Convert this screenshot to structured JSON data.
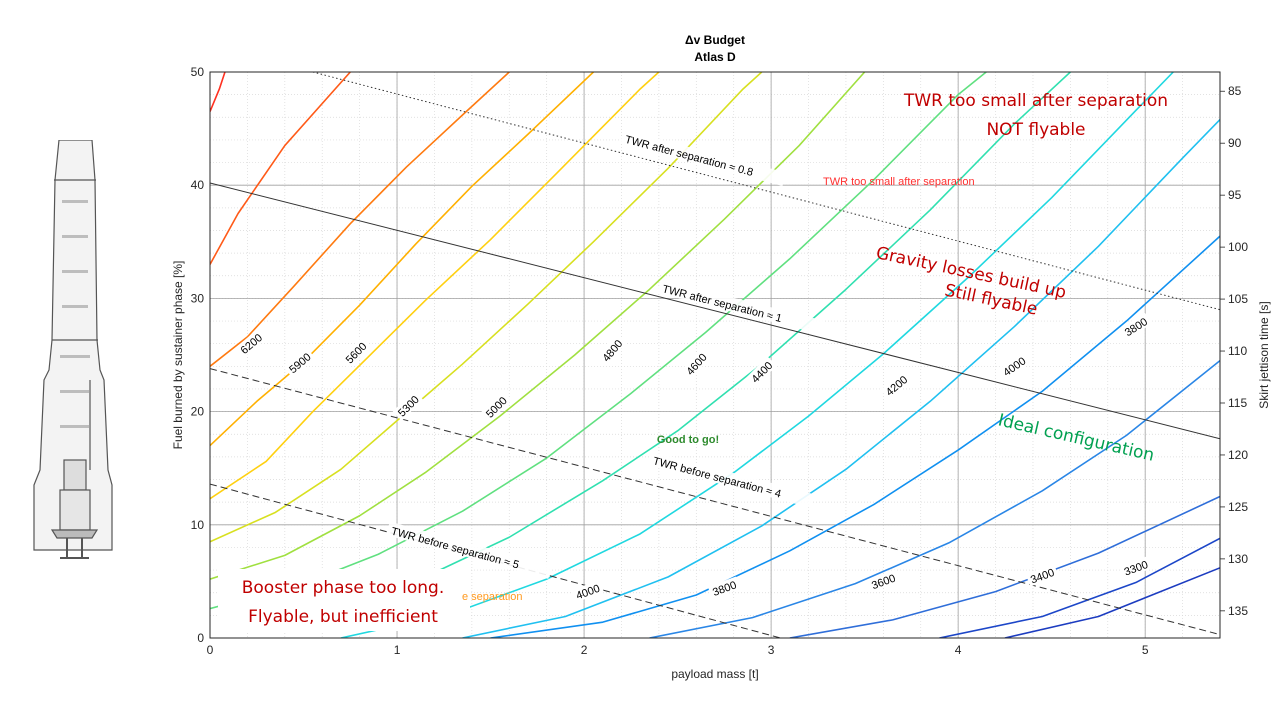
{
  "chart_data": {
    "type": "line",
    "title": "Δv Budget",
    "subtitle": "Atlas D",
    "xlabel": "payload mass [t]",
    "ylabel": "Fuel burned by sustainer phase [%]",
    "y2label": "Skirt jettison time [s]",
    "xlim": [
      0,
      5.4
    ],
    "ylim": [
      0,
      50
    ],
    "xticks": [
      "0",
      "1",
      "2",
      "3",
      "4",
      "5"
    ],
    "yticks": [
      "0",
      "10",
      "20",
      "30",
      "40",
      "50"
    ],
    "y2ticks": [
      "85",
      "90",
      "95",
      "100",
      "105",
      "110",
      "115",
      "120",
      "125",
      "130",
      "135"
    ],
    "grid": true,
    "dv_contours": [
      {
        "value": 6200,
        "label": "6200",
        "color": "#ff7a10",
        "points": [
          [
            0,
            24
          ],
          [
            0.2,
            26.6
          ],
          [
            0.45,
            31.1
          ],
          [
            0.75,
            36.6
          ],
          [
            1.05,
            41.6
          ],
          [
            1.35,
            46.2
          ],
          [
            1.6,
            50
          ]
        ]
      },
      {
        "value": 5900,
        "label": "5900",
        "color": "#ffb000",
        "points": [
          [
            0,
            17
          ],
          [
            0.25,
            20.9
          ],
          [
            0.5,
            24.4
          ],
          [
            0.8,
            29.4
          ],
          [
            1.1,
            34.8
          ],
          [
            1.4,
            39.9
          ],
          [
            1.7,
            44.5
          ],
          [
            2.05,
            50
          ]
        ]
      },
      {
        "value": 5600,
        "label": "5600",
        "color": "#ffd010",
        "points": [
          [
            0,
            12.3
          ],
          [
            0.3,
            15.6
          ],
          [
            0.55,
            20.0
          ],
          [
            0.85,
            24.9
          ],
          [
            1.15,
            29.8
          ],
          [
            1.5,
            35.2
          ],
          [
            1.85,
            41
          ],
          [
            2.3,
            48.5
          ],
          [
            2.4,
            50
          ]
        ]
      },
      {
        "value": 5300,
        "label": "5300",
        "color": "#d8e020",
        "points": [
          [
            0,
            8.5
          ],
          [
            0.35,
            11.1
          ],
          [
            0.7,
            14.9
          ],
          [
            1.0,
            19.2
          ],
          [
            1.35,
            24.2
          ],
          [
            1.7,
            29.5
          ],
          [
            2.05,
            35.0
          ],
          [
            2.45,
            41.5
          ],
          [
            2.85,
            48.5
          ],
          [
            2.95,
            50
          ]
        ]
      },
      {
        "value": 5000,
        "label": "5000",
        "color": "#a0e040",
        "points": [
          [
            0,
            5.2
          ],
          [
            0.4,
            7.3
          ],
          [
            0.8,
            10.8
          ],
          [
            1.15,
            14.6
          ],
          [
            1.55,
            19.6
          ],
          [
            1.95,
            25.0
          ],
          [
            2.35,
            30.8
          ],
          [
            2.75,
            37.0
          ],
          [
            3.15,
            43.5
          ],
          [
            3.5,
            50
          ]
        ]
      },
      {
        "value": 4800,
        "label": "4800",
        "color": "#60e080",
        "points": [
          [
            0,
            2.6
          ],
          [
            0.5,
            4.8
          ],
          [
            0.9,
            7.4
          ],
          [
            1.35,
            11.2
          ],
          [
            1.8,
            15.9
          ],
          [
            2.25,
            21.6
          ],
          [
            2.65,
            27.0
          ],
          [
            3.1,
            33.5
          ],
          [
            3.55,
            40.5
          ],
          [
            4.0,
            48
          ],
          [
            4.15,
            50
          ]
        ]
      },
      {
        "value": 4600,
        "label": "4600",
        "color": "#30e0b0",
        "points": [
          [
            0.2,
            0.7
          ],
          [
            0.6,
            2.4
          ],
          [
            1.1,
            5.0
          ],
          [
            1.6,
            8.9
          ],
          [
            2.1,
            13.9
          ],
          [
            2.5,
            18.3
          ],
          [
            2.95,
            24.2
          ],
          [
            3.4,
            30.8
          ],
          [
            3.85,
            37.8
          ],
          [
            4.3,
            45.4
          ],
          [
            4.6,
            50
          ]
        ]
      },
      {
        "value": 4400,
        "label": "4400",
        "color": "#20d8e0",
        "points": [
          [
            0.7,
            0
          ],
          [
            1.3,
            2.2
          ],
          [
            1.8,
            5.2
          ],
          [
            2.3,
            9.2
          ],
          [
            2.8,
            14.6
          ],
          [
            3.2,
            19.6
          ],
          [
            3.6,
            25.1
          ],
          [
            4.05,
            31.8
          ],
          [
            4.5,
            38.9
          ],
          [
            4.95,
            46.6
          ],
          [
            5.15,
            50
          ]
        ]
      },
      {
        "value": 4200,
        "label": "4200",
        "color": "#20c0f0",
        "points": [
          [
            1.35,
            0
          ],
          [
            1.9,
            1.9
          ],
          [
            2.45,
            5.4
          ],
          [
            2.95,
            9.9
          ],
          [
            3.4,
            14.9
          ],
          [
            3.85,
            20.9
          ],
          [
            4.3,
            27.5
          ],
          [
            4.75,
            34.6
          ],
          [
            5.2,
            42.4
          ],
          [
            5.4,
            45.8
          ]
        ]
      },
      {
        "value": 4000,
        "label": "4000",
        "color": "#1090f0",
        "points": [
          [
            1.5,
            0
          ],
          [
            2.1,
            1.4
          ],
          [
            2.6,
            3.8
          ],
          [
            3.1,
            7.7
          ],
          [
            3.55,
            11.8
          ],
          [
            4.0,
            16.6
          ],
          [
            4.45,
            21.8
          ],
          [
            4.9,
            28.0
          ],
          [
            5.4,
            35.5
          ]
        ]
      },
      {
        "value": 3800,
        "label": "3800",
        "color": "#2a86e6",
        "points": [
          [
            2.35,
            0
          ],
          [
            2.9,
            1.8
          ],
          [
            3.45,
            4.8
          ],
          [
            3.95,
            8.4
          ],
          [
            4.45,
            13.0
          ],
          [
            4.9,
            17.9
          ],
          [
            5.4,
            24.5
          ]
        ]
      },
      {
        "value": 3600,
        "label": "3600",
        "color": "#2f6ed9",
        "points": [
          [
            3.1,
            0
          ],
          [
            3.65,
            1.6
          ],
          [
            4.2,
            4.1
          ],
          [
            4.75,
            7.5
          ],
          [
            5.4,
            12.5
          ]
        ]
      },
      {
        "value": 3400,
        "label": "3400",
        "color": "#1c46c8",
        "points": [
          [
            3.9,
            0
          ],
          [
            4.45,
            1.9
          ],
          [
            4.95,
            4.9
          ],
          [
            5.4,
            8.8
          ]
        ]
      },
      {
        "value": 3300,
        "label": "3300",
        "color": "#1c3cc0",
        "points": [
          [
            4.25,
            0
          ],
          [
            4.75,
            1.9
          ],
          [
            5.4,
            6.2
          ]
        ]
      }
    ],
    "extra_contours": [
      {
        "color": "#ff3020",
        "points": [
          [
            0,
            46.5
          ],
          [
            0.05,
            48.5
          ],
          [
            0.08,
            50
          ]
        ]
      },
      {
        "color": "#ff5a18",
        "points": [
          [
            0,
            33
          ],
          [
            0.15,
            37.5
          ],
          [
            0.4,
            43.5
          ],
          [
            0.75,
            50
          ]
        ]
      }
    ],
    "twr_lines": [
      {
        "label": "TWR after separation ≈ 0.8",
        "style": "dotted",
        "points": [
          [
            0.55,
            50
          ],
          [
            5.4,
            29
          ]
        ],
        "label_at": [
          2.2,
          44.2
        ]
      },
      {
        "label": "TWR after separation ≈ 1",
        "style": "solid",
        "points": [
          [
            0,
            40.2
          ],
          [
            5.4,
            17.6
          ]
        ],
        "label_at": [
          2.4,
          31.0
        ]
      },
      {
        "label": "TWR before separation ≈ 4",
        "style": "dashed",
        "points": [
          [
            0,
            23.8
          ],
          [
            5.4,
            0.3
          ]
        ],
        "label_at": [
          2.35,
          15.8
        ]
      },
      {
        "label": "TWR before separation ≈ 5",
        "style": "dashed",
        "points": [
          [
            0,
            13.6
          ],
          [
            3.05,
            0
          ]
        ],
        "label_at": [
          0.95,
          9.6
        ]
      }
    ],
    "annotations": {
      "twr_small_red": "TWR too small after separation",
      "twr_small_big_1": "TWR too small after separation",
      "twr_small_big_2": "NOT flyable",
      "gravity_1": "Gravity losses build up",
      "gravity_2": "Still flyable",
      "good": "Good to go!",
      "ideal": "Ideal configuration",
      "booster_1": "Booster phase too long.",
      "booster_2": "Flyable, but inefficient",
      "partial_orange": "e separation"
    }
  }
}
